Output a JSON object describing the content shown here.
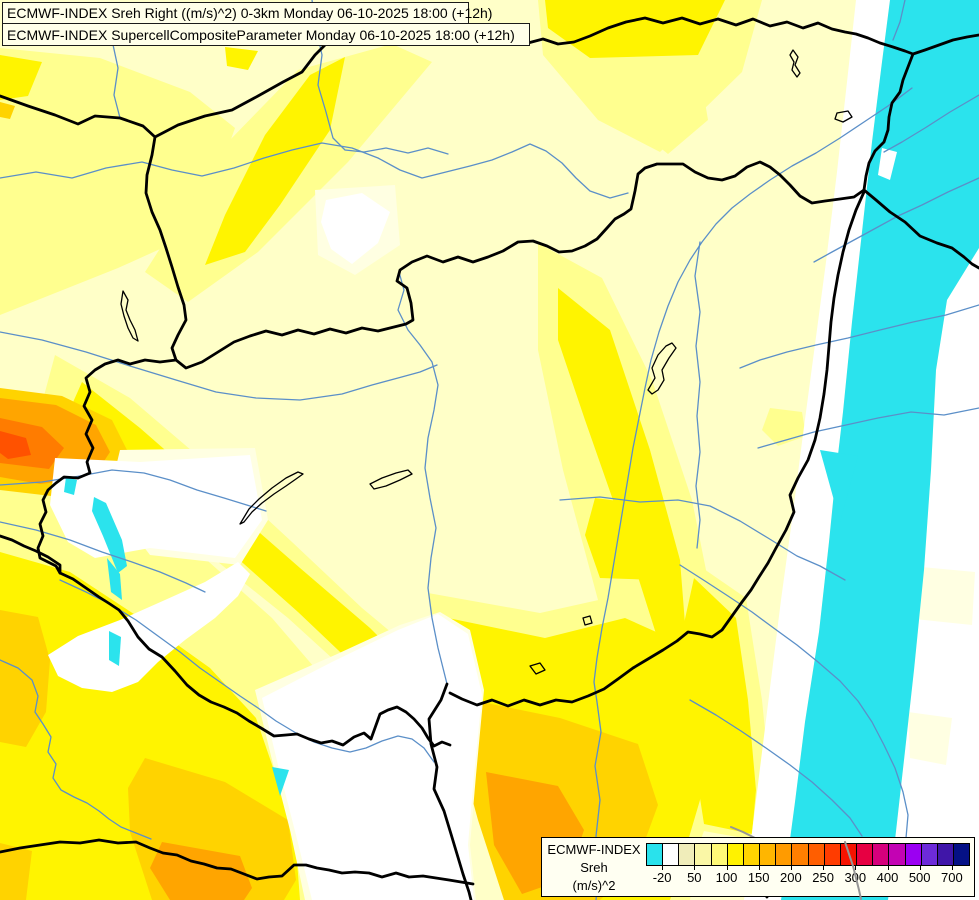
{
  "titles": {
    "line1": "ECMWF-INDEX Sreh Right ((m/s)^2) 0-3km Monday 06-10-2025 18:00 (+12h)",
    "line2": "ECMWF-INDEX SupercellCompositeParameter Monday 06-10-2025 18:00 (+12h)"
  },
  "legend": {
    "product": "ECMWF-INDEX",
    "parameter": "Sreh",
    "units": "(m/s)^2",
    "tick_labels": [
      "-20",
      "50",
      "100",
      "150",
      "200",
      "250",
      "300",
      "400",
      "500",
      "700"
    ],
    "colors": [
      "#29E2EC",
      "#FFFFFF",
      "#F0EDBA",
      "#FAF7A6",
      "#FFFA78",
      "#FFF200",
      "#FFD400",
      "#FFB600",
      "#FF9B00",
      "#FF7F00",
      "#FF5E00",
      "#FF3C00",
      "#F61300",
      "#E70042",
      "#D6007C",
      "#C303B3",
      "#9B00F2",
      "#6D2BD9",
      "#4016A8",
      "#051185"
    ]
  },
  "chart_data": {
    "type": "heatmap",
    "title": "ECMWF-INDEX Sreh Right ((m/s)^2) 0-3km, Supercell Composite Parameter",
    "valid_time": "Monday 06-10-2025 18:00 (+12h)",
    "legend_title": "ECMWF-INDEX Sreh (m/s)^2",
    "scale_ticks": [
      -20,
      50,
      100,
      150,
      200,
      250,
      300,
      400,
      500,
      700
    ],
    "region_summary": "Carpathian-basin map: values mostly 20-100 over the centre, 100-200 over the south-west and south, local 200-300 maxima at the western edge and bottom-left, below -20 (cyan) along the eastern mountain band"
  },
  "map": {
    "colors": {
      "background": "#FFFFC8",
      "pale": "#FFFFE2",
      "white": "#FFFFFF",
      "light_yellow": "#FFFF8F",
      "yellow": "#FFF400",
      "gold": "#FFD300",
      "orange": "#FFA500",
      "deep_orange": "#FF7C00",
      "red_orange": "#FF5200",
      "cyan": "#2BE3ED",
      "river": "#5B8FC8",
      "border": "#000000",
      "admin_gray": "#969696",
      "lake_outline": "#000000"
    }
  }
}
